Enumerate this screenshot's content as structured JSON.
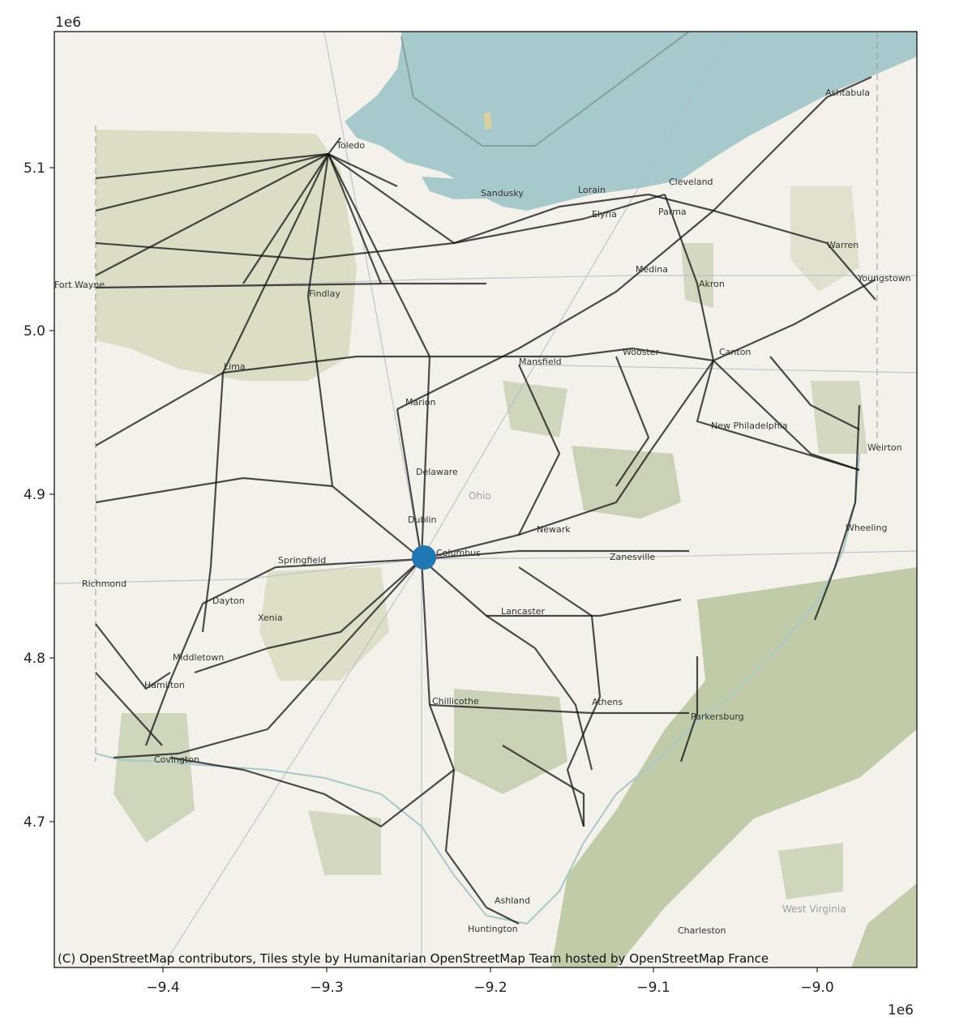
{
  "figure": {
    "x_offset_label": "1e6",
    "y_offset_label": "1e6",
    "x_ticks": [
      "−9.4",
      "−9.3",
      "−9.2",
      "−9.1",
      "−9.0"
    ],
    "y_ticks": [
      "5.1",
      "5.0",
      "4.9",
      "4.8",
      "4.7"
    ],
    "attribution": "(C) OpenStreetMap contributors, Tiles style by Humanitarian OpenStreetMap Team hosted by OpenStreetMap France"
  },
  "map": {
    "water_color": "#a6cacb",
    "land_color": "#f3f1ea",
    "forest_color": "#b6c49c",
    "farm_color": "#d5d6b8",
    "rail_color": "#111111",
    "marker_color": "#1f77b4",
    "lake_label": "",
    "state_labels": [
      "Ohio",
      "West Virginia"
    ],
    "places": [
      "Ashtabula",
      "Toledo",
      "Sandusky",
      "Lorain",
      "Cleveland",
      "Elyria",
      "Parma",
      "Warren",
      "Youngstown",
      "Fort Wayne",
      "Findlay",
      "Medina",
      "Akron",
      "Lima",
      "Mansfield",
      "Wooster",
      "Canton",
      "Marion",
      "New Philadelphia",
      "Weirton",
      "Delaware",
      "Dublin",
      "Columbus",
      "Newark",
      "Wheeling",
      "Springfield",
      "Zanesville",
      "Richmond",
      "Dayton",
      "Xenia",
      "Lancaster",
      "Middletown",
      "Hamilton",
      "Chillicothe",
      "Athens",
      "Parkersburg",
      "Covington",
      "Ashland",
      "Huntington",
      "Charleston"
    ]
  },
  "chart_data": {
    "type": "map",
    "xlim": [
      -9466000,
      -8947000
    ],
    "ylim": [
      4610000,
      5185000
    ],
    "x_tick_values": [
      -9400000,
      -9300000,
      -9200000,
      -9100000,
      -9000000
    ],
    "y_tick_values": [
      5100000,
      5000000,
      4900000,
      4800000,
      4700000
    ],
    "marker": {
      "label": "Columbus",
      "x": -9239000,
      "y": 4861000
    }
  }
}
